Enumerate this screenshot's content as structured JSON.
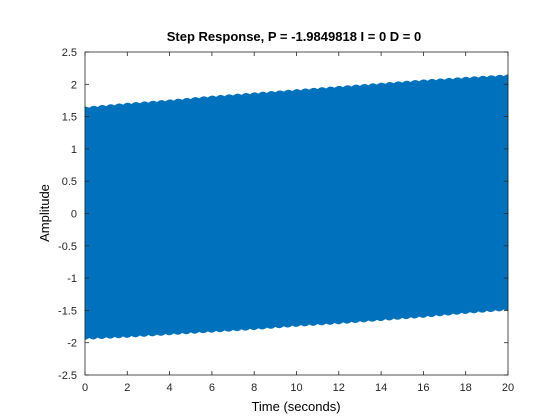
{
  "chart_data": {
    "type": "area",
    "title": "Step Response, P = -1.9849818 I = 0 D = 0",
    "xlabel": "Time (seconds)",
    "ylabel": "Amplitude",
    "xlim": [
      0,
      20
    ],
    "ylim": [
      -2.5,
      2.5
    ],
    "xticks": [
      "0",
      "2",
      "4",
      "6",
      "8",
      "10",
      "12",
      "14",
      "16",
      "18",
      "20"
    ],
    "yticks": [
      "2.5",
      "2",
      "1.5",
      "1",
      "0.5",
      "0",
      "-0.5",
      "-1",
      "-1.5",
      "-2",
      "-2.5"
    ],
    "grid": false,
    "series_color": "#0072BD",
    "envelope": {
      "x": [
        0,
        2,
        4,
        6,
        8,
        10,
        12,
        14,
        16,
        18,
        20
      ],
      "upper": [
        1.65,
        1.71,
        1.76,
        1.82,
        1.87,
        1.92,
        1.97,
        2.02,
        2.07,
        2.11,
        2.15
      ],
      "lower": [
        -1.95,
        -1.92,
        -1.88,
        -1.84,
        -1.8,
        -1.75,
        -1.71,
        -1.66,
        -1.61,
        -1.55,
        -1.5
      ]
    }
  }
}
